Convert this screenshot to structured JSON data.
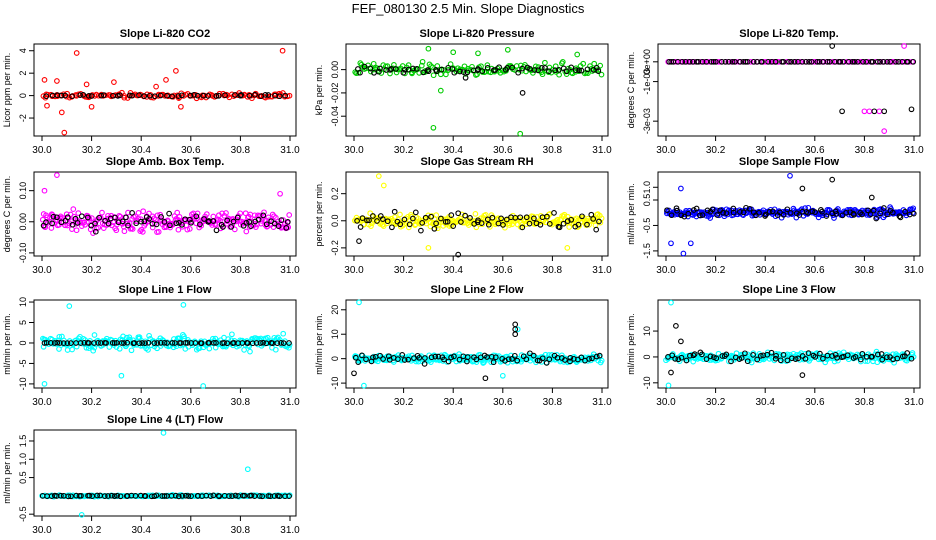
{
  "figure": {
    "title": "FEF_080130  2.5 Min. Slope Diagnostics"
  },
  "colors": {
    "red": "#ff0000",
    "green": "#00cc00",
    "magenta": "#ff00ff",
    "yellow": "#ffff00",
    "blue": "#0000ff",
    "cyan": "#00ffff",
    "black": "#000000"
  },
  "chart_data": [
    {
      "type": "scatter",
      "title": "Slope Li-820 CO2",
      "ylabel": "Licor ppm per min.",
      "xlim": [
        30.0,
        31.0
      ],
      "xticks": [
        "30.0",
        "30.2",
        "30.4",
        "30.6",
        "30.8",
        "31.0"
      ],
      "ylim": [
        -3.6,
        4.6
      ],
      "yticks": [
        {
          "v": -2,
          "label": "-2"
        },
        {
          "v": 0,
          "label": "0"
        },
        {
          "v": 2,
          "label": "2"
        },
        {
          "v": 4,
          "label": "4"
        }
      ],
      "color": "red",
      "series": [
        {
          "name": "scatter",
          "color": "red",
          "amplitude": 0.35,
          "n": 130,
          "points": [
            [
              30.01,
              1.4
            ],
            [
              30.02,
              -0.9
            ],
            [
              30.06,
              1.3
            ],
            [
              30.08,
              -1.5
            ],
            [
              30.09,
              -3.3
            ],
            [
              30.14,
              3.8
            ],
            [
              30.18,
              1.0
            ],
            [
              30.2,
              -1.0
            ],
            [
              30.29,
              1.2
            ],
            [
              30.46,
              0.8
            ],
            [
              30.5,
              1.4
            ],
            [
              30.54,
              2.2
            ],
            [
              30.56,
              -1.0
            ],
            [
              30.97,
              4.0
            ]
          ]
        },
        {
          "name": "reference",
          "color": "black",
          "baseline": 0,
          "amplitude": 0.1,
          "n": 45
        }
      ]
    },
    {
      "type": "scatter",
      "title": "Slope Li-820 Pressure",
      "ylabel": "kPa per min.",
      "xlim": [
        30.0,
        31.0
      ],
      "xticks": [
        "30.0",
        "30.2",
        "30.4",
        "30.6",
        "30.8",
        "31.0"
      ],
      "ylim": [
        -0.057,
        0.022
      ],
      "yticks": [
        {
          "v": -0.04,
          "label": "-0.04"
        },
        {
          "v": -0.02,
          "label": "-0.02"
        },
        {
          "v": 0.0,
          "label": "0.00"
        }
      ],
      "color": "green",
      "series": [
        {
          "name": "scatter",
          "color": "green",
          "amplitude": 0.008,
          "n": 150,
          "points": [
            [
              30.3,
              0.018
            ],
            [
              30.32,
              -0.05
            ],
            [
              30.35,
              -0.018
            ],
            [
              30.4,
              0.015
            ],
            [
              30.62,
              0.017
            ],
            [
              30.67,
              -0.055
            ],
            [
              30.5,
              0.014
            ],
            [
              30.9,
              0.013
            ]
          ]
        },
        {
          "name": "reference",
          "color": "black",
          "baseline": 0,
          "amplitude": 0.004,
          "n": 60,
          "points": [
            [
              30.68,
              -0.02
            ],
            [
              30.45,
              -0.007
            ]
          ]
        }
      ]
    },
    {
      "type": "scatter",
      "title": "Slope Li-820 Temp.",
      "ylabel": "degrees C per min.",
      "xlim": [
        30.0,
        31.0
      ],
      "xticks": [
        "30.0",
        "30.2",
        "30.4",
        "30.6",
        "30.8",
        "31.0"
      ],
      "ylim": [
        -0.00375,
        0.0009
      ],
      "yticks": [
        {
          "v": -0.003,
          "label": "-3e-03"
        },
        {
          "v": -0.001,
          "label": "-1e-03"
        },
        {
          "v": 0.0,
          "label": "0e+00"
        }
      ],
      "color": "magenta",
      "series": [
        {
          "name": "scatter",
          "color": "magenta",
          "amplitude": 0,
          "n": 90,
          "points": [
            [
              30.96,
              0.0008
            ],
            [
              30.8,
              -0.0025
            ],
            [
              30.82,
              -0.0025
            ],
            [
              30.86,
              -0.0025
            ],
            [
              30.88,
              -0.0035
            ]
          ]
        },
        {
          "name": "reference",
          "color": "black",
          "baseline": 0,
          "amplitude": 0,
          "n": 70,
          "points": [
            [
              30.67,
              0.0008
            ],
            [
              30.84,
              -0.0025
            ],
            [
              30.88,
              -0.0025
            ],
            [
              30.99,
              -0.0024
            ],
            [
              30.71,
              -0.0025
            ]
          ]
        }
      ]
    },
    {
      "type": "scatter",
      "title": "Slope Amb. Box Temp.",
      "ylabel": "degrees C per min.",
      "xlim": [
        30.0,
        31.0
      ],
      "xticks": [
        "30.0",
        "30.2",
        "30.4",
        "30.6",
        "30.8",
        "31.0"
      ],
      "ylim": [
        -0.11,
        0.16
      ],
      "yticks": [
        {
          "v": -0.1,
          "label": "-0.10"
        },
        {
          "v": 0.0,
          "label": "0.00"
        },
        {
          "v": 0.1,
          "label": "0.10"
        }
      ],
      "color": "magenta",
      "series": [
        {
          "name": "scatter",
          "color": "magenta",
          "amplitude": 0.045,
          "n": 260,
          "points": [
            [
              30.06,
              0.15
            ],
            [
              30.01,
              0.1
            ],
            [
              30.96,
              0.09
            ]
          ]
        },
        {
          "name": "reference",
          "color": "black",
          "baseline": 0,
          "amplitude": 0.035,
          "n": 70
        }
      ]
    },
    {
      "type": "scatter",
      "title": "Slope Gas Stream RH",
      "ylabel": "percent per min.",
      "xlim": [
        30.0,
        31.0
      ],
      "xticks": [
        "30.0",
        "30.2",
        "30.4",
        "30.6",
        "30.8",
        "31.0"
      ],
      "ylim": [
        -0.26,
        0.36
      ],
      "yticks": [
        {
          "v": -0.2,
          "label": "-0.2"
        },
        {
          "v": 0.0,
          "label": "0.0"
        },
        {
          "v": 0.2,
          "label": "0.2"
        }
      ],
      "color": "yellow",
      "series": [
        {
          "name": "scatter",
          "color": "yellow",
          "amplitude": 0.07,
          "n": 260,
          "points": [
            [
              30.1,
              0.33
            ],
            [
              30.12,
              0.26
            ],
            [
              30.3,
              -0.2
            ],
            [
              30.86,
              -0.2
            ]
          ]
        },
        {
          "name": "reference",
          "color": "black",
          "baseline": 0,
          "amplitude": 0.09,
          "n": 70,
          "points": [
            [
              30.42,
              -0.25
            ],
            [
              30.02,
              -0.15
            ]
          ]
        }
      ]
    },
    {
      "type": "scatter",
      "title": "Slope Sample Flow",
      "ylabel": "ml/min per min.",
      "xlim": [
        30.0,
        31.0
      ],
      "xticks": [
        "30.0",
        "30.2",
        "30.4",
        "30.6",
        "30.8",
        "31.0"
      ],
      "ylim": [
        -1.7,
        1.6
      ],
      "yticks": [
        {
          "v": -1.5,
          "label": "-1.5"
        },
        {
          "v": -0.5,
          "label": "-0.5"
        },
        {
          "v": 0.5,
          "label": "0.5"
        },
        {
          "v": 1.0,
          "label": "1.0"
        }
      ],
      "color": "blue",
      "series": [
        {
          "name": "scatter",
          "color": "blue",
          "amplitude": 0.25,
          "n": 260,
          "points": [
            [
              30.07,
              -1.6
            ],
            [
              30.06,
              0.95
            ],
            [
              30.5,
              1.45
            ],
            [
              30.02,
              -1.2
            ],
            [
              30.1,
              -1.2
            ]
          ]
        },
        {
          "name": "reference",
          "color": "black",
          "baseline": 0,
          "amplitude": 0.3,
          "n": 70,
          "points": [
            [
              30.67,
              1.3
            ],
            [
              30.55,
              0.95
            ],
            [
              30.83,
              0.6
            ]
          ]
        }
      ]
    },
    {
      "type": "scatter",
      "title": "Slope Line 1 Flow",
      "ylabel": "ml/min per min.",
      "xlim": [
        30.0,
        31.0
      ],
      "xticks": [
        "30.0",
        "30.2",
        "30.4",
        "30.6",
        "30.8",
        "31.0"
      ],
      "ylim": [
        -11,
        10.5
      ],
      "yticks": [
        {
          "v": -10,
          "label": "-10"
        },
        {
          "v": -5,
          "label": "-5"
        },
        {
          "v": 0,
          "label": "0"
        },
        {
          "v": 5,
          "label": "5"
        },
        {
          "v": 10,
          "label": "10"
        }
      ],
      "color": "cyan",
      "series": [
        {
          "name": "scatter",
          "color": "cyan",
          "amplitude": 2.5,
          "n": 260,
          "points": [
            [
              30.11,
              9.0
            ],
            [
              30.57,
              9.3
            ],
            [
              30.65,
              -10.5
            ],
            [
              30.01,
              -10
            ],
            [
              30.32,
              -8
            ]
          ]
        },
        {
          "name": "reference",
          "color": "black",
          "baseline": 0,
          "amplitude": 0.1,
          "n": 70
        }
      ]
    },
    {
      "type": "scatter",
      "title": "Slope Line 2 Flow",
      "ylabel": "ml/min per min.",
      "xlim": [
        30.0,
        31.0
      ],
      "xticks": [
        "30.0",
        "30.2",
        "30.4",
        "30.6",
        "30.8",
        "31.0"
      ],
      "ylim": [
        -12,
        24
      ],
      "yticks": [
        {
          "v": -10,
          "label": "-10"
        },
        {
          "v": 0,
          "label": "0"
        },
        {
          "v": 10,
          "label": "10"
        },
        {
          "v": 20,
          "label": "20"
        }
      ],
      "color": "cyan",
      "series": [
        {
          "name": "scatter",
          "color": "cyan",
          "amplitude": 2.5,
          "n": 270,
          "points": [
            [
              30.02,
              23
            ],
            [
              30.04,
              -11
            ],
            [
              30.66,
              12
            ],
            [
              30.6,
              -7
            ]
          ]
        },
        {
          "name": "reference",
          "color": "black",
          "baseline": 0,
          "amplitude": 2.5,
          "n": 70,
          "points": [
            [
              30.65,
              14
            ],
            [
              30.65,
              12
            ],
            [
              30.65,
              10
            ],
            [
              30.53,
              -8
            ],
            [
              30.0,
              -6
            ]
          ]
        }
      ]
    },
    {
      "type": "scatter",
      "title": "Slope Line 3 Flow",
      "ylabel": "ml/min per min.",
      "xlim": [
        30.0,
        31.0
      ],
      "xticks": [
        "30.0",
        "30.2",
        "30.4",
        "30.6",
        "30.8",
        "31.0"
      ],
      "ylim": [
        -12,
        22
      ],
      "yticks": [
        {
          "v": -10,
          "label": "-10"
        },
        {
          "v": 0,
          "label": "0"
        },
        {
          "v": 10,
          "label": "10"
        }
      ],
      "color": "cyan",
      "series": [
        {
          "name": "scatter",
          "color": "cyan",
          "amplitude": 2.5,
          "n": 260,
          "points": [
            [
              30.02,
              21
            ],
            [
              30.01,
              -11
            ]
          ]
        },
        {
          "name": "reference",
          "color": "black",
          "baseline": 0,
          "amplitude": 2.5,
          "n": 70,
          "points": [
            [
              30.04,
              12
            ],
            [
              30.06,
              6
            ],
            [
              30.55,
              -7
            ],
            [
              30.02,
              -6
            ]
          ]
        }
      ]
    },
    {
      "type": "scatter",
      "title": "Slope Line 4 (LT) Flow",
      "ylabel": "ml/min per min.",
      "xlim": [
        30.0,
        31.0
      ],
      "xticks": [
        "30.0",
        "30.2",
        "30.4",
        "30.6",
        "30.8",
        "31.0"
      ],
      "ylim": [
        -0.55,
        1.8
      ],
      "yticks": [
        {
          "v": -0.5,
          "label": "-0.5"
        },
        {
          "v": 0.5,
          "label": "0.5"
        },
        {
          "v": 1.0,
          "label": "1.0"
        },
        {
          "v": 1.5,
          "label": "1.5"
        }
      ],
      "color": "cyan",
      "series": [
        {
          "name": "scatter",
          "color": "cyan",
          "amplitude": 0.03,
          "n": 200,
          "points": [
            [
              30.49,
              1.72
            ],
            [
              30.83,
              0.73
            ],
            [
              30.16,
              -0.52
            ]
          ]
        },
        {
          "name": "reference",
          "color": "black",
          "baseline": 0,
          "amplitude": 0.02,
          "n": 70
        }
      ]
    }
  ]
}
